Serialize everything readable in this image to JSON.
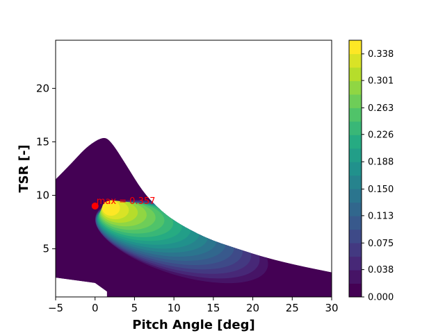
{
  "chart_data": {
    "type": "heatmap",
    "subtype": "filled-contour",
    "title": "",
    "xlabel": "Pitch Angle [deg]",
    "ylabel": "TSR [-]",
    "xlim": [
      -5,
      30
    ],
    "ylim": [
      0.5,
      24.5
    ],
    "xticks": [
      -5,
      0,
      5,
      10,
      15,
      20,
      25,
      30
    ],
    "yticks": [
      5,
      10,
      15,
      20
    ],
    "colormap": "viridis",
    "colorbar": {
      "range": [
        0.0,
        0.357
      ],
      "ticks": [
        "0.000",
        "0.038",
        "0.075",
        "0.113",
        "0.150",
        "0.188",
        "0.226",
        "0.263",
        "0.301",
        "0.338"
      ],
      "levels": 19
    },
    "maximum": {
      "x": 0,
      "y": 9,
      "value": 0.357,
      "label": "max = 0.357",
      "color": "#ff0000"
    },
    "boundary": {
      "upper_edge": [
        {
          "x": -5,
          "y": 11.5
        },
        {
          "x": -3,
          "y": 13.0
        },
        {
          "x": -1,
          "y": 14.6
        },
        {
          "x": 1,
          "y": 15.5
        },
        {
          "x": 2,
          "y": 15.1
        },
        {
          "x": 4,
          "y": 12.8
        },
        {
          "x": 6,
          "y": 10.4
        },
        {
          "x": 8,
          "y": 8.8
        },
        {
          "x": 10,
          "y": 7.6
        },
        {
          "x": 14,
          "y": 6.0
        },
        {
          "x": 18,
          "y": 5.0
        },
        {
          "x": 22,
          "y": 4.1
        },
        {
          "x": 26,
          "y": 3.4
        },
        {
          "x": 30,
          "y": 2.8
        }
      ],
      "lower_edge": [
        {
          "x": -5,
          "y": 2.3
        },
        {
          "x": 0,
          "y": 1.8
        },
        {
          "x": 1.5,
          "y": 1.0
        },
        {
          "x": 1.5,
          "y": 0.5
        }
      ]
    }
  }
}
